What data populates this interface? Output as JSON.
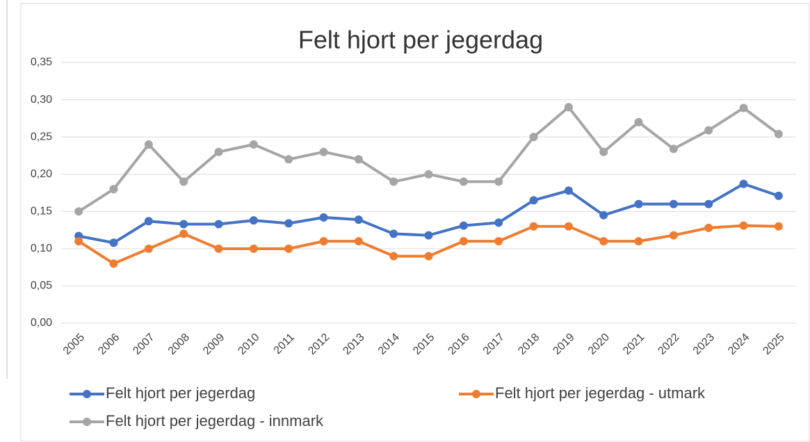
{
  "chart_data": {
    "type": "line",
    "title": "Felt hjort per jegerdag",
    "categories": [
      "2005",
      "2006",
      "2007",
      "2008",
      "2009",
      "2010",
      "2011",
      "2012",
      "2013",
      "2014",
      "2015",
      "2016",
      "2017",
      "2018",
      "2019",
      "2020",
      "2021",
      "2022",
      "2023",
      "2024",
      "2025"
    ],
    "series": [
      {
        "name": "Felt hjort per jegerdag",
        "color": "#4472c4",
        "values": [
          0.117,
          0.108,
          0.137,
          0.133,
          0.133,
          0.138,
          0.134,
          0.142,
          0.139,
          0.12,
          0.118,
          0.131,
          0.135,
          0.165,
          0.178,
          0.145,
          0.16,
          0.16,
          0.16,
          0.187,
          0.171
        ]
      },
      {
        "name": "Felt hjort per jegerdag - utmark",
        "color": "#ed7d31",
        "values": [
          0.11,
          0.08,
          0.1,
          0.12,
          0.1,
          0.1,
          0.1,
          0.11,
          0.11,
          0.09,
          0.09,
          0.11,
          0.11,
          0.13,
          0.13,
          0.11,
          0.11,
          0.118,
          0.128,
          0.131,
          0.13
        ]
      },
      {
        "name": "Felt hjort per jegerdag - innmark",
        "color": "#a5a5a5",
        "values": [
          0.15,
          0.18,
          0.24,
          0.19,
          0.23,
          0.24,
          0.22,
          0.23,
          0.22,
          0.19,
          0.2,
          0.19,
          0.19,
          0.25,
          0.29,
          0.23,
          0.27,
          0.234,
          0.259,
          0.289,
          0.254
        ]
      }
    ],
    "ylim": [
      0,
      0.35
    ],
    "yticks": [
      {
        "value": 0,
        "label": "0,00"
      },
      {
        "value": 0.05,
        "label": "0,05"
      },
      {
        "value": 0.1,
        "label": "0,10"
      },
      {
        "value": 0.15,
        "label": "0,15"
      },
      {
        "value": 0.2,
        "label": "0,20"
      },
      {
        "value": 0.25,
        "label": "0,25"
      },
      {
        "value": 0.3,
        "label": "0,30"
      },
      {
        "value": 0.35,
        "label": "0,35"
      }
    ],
    "grid": true
  }
}
